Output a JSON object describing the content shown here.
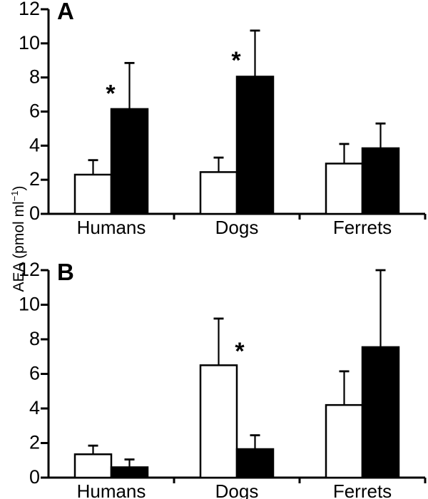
{
  "figure": {
    "ylabel": {
      "text_main": "AEA (pmol ml",
      "text_superscript": "−1",
      "text_close": ")"
    },
    "colors": {
      "background": "#ffffff",
      "axis": "#000000",
      "open_bar_fill": "#ffffff",
      "filled_bar_fill": "#000000",
      "text": "#000000"
    }
  },
  "chart_data": [
    {
      "type": "bar",
      "panel_label": "A",
      "categories": [
        "Humans",
        "Dogs",
        "Ferrets"
      ],
      "ylim": [
        0,
        12
      ],
      "yticks": [
        0,
        2,
        4,
        6,
        8,
        10,
        12
      ],
      "grid": false,
      "legend": "none",
      "series": [
        {
          "name": "open-bars",
          "fill": "#ffffff",
          "values": [
            2.3,
            2.45,
            2.95
          ],
          "errors_up": [
            0.85,
            0.85,
            1.15
          ]
        },
        {
          "name": "filled-bars",
          "fill": "#000000",
          "values": [
            6.15,
            8.05,
            3.85
          ],
          "errors_up": [
            2.7,
            2.7,
            1.45
          ]
        }
      ],
      "significance_markers": [
        {
          "marker": "*",
          "category_index": 0,
          "series_index": 1,
          "side": "left",
          "y_value": 7.3
        },
        {
          "marker": "*",
          "category_index": 1,
          "series_index": 1,
          "side": "left",
          "y_value": 9.25
        }
      ]
    },
    {
      "type": "bar",
      "panel_label": "B",
      "categories": [
        "Humans",
        "Dogs",
        "Ferrets"
      ],
      "ylim": [
        0,
        12
      ],
      "yticks": [
        0,
        2,
        4,
        6,
        8,
        10,
        12
      ],
      "grid": false,
      "legend": "none",
      "series": [
        {
          "name": "open-bars",
          "fill": "#ffffff",
          "values": [
            1.35,
            6.5,
            4.2
          ],
          "errors_up": [
            0.5,
            2.7,
            1.95
          ]
        },
        {
          "name": "filled-bars",
          "fill": "#000000",
          "values": [
            0.6,
            1.65,
            7.55
          ],
          "errors_up": [
            0.45,
            0.8,
            4.45
          ]
        }
      ],
      "significance_markers": [
        {
          "marker": "*",
          "category_index": 1,
          "series_index": 0,
          "side": "right",
          "y_value": 7.55
        }
      ]
    }
  ]
}
